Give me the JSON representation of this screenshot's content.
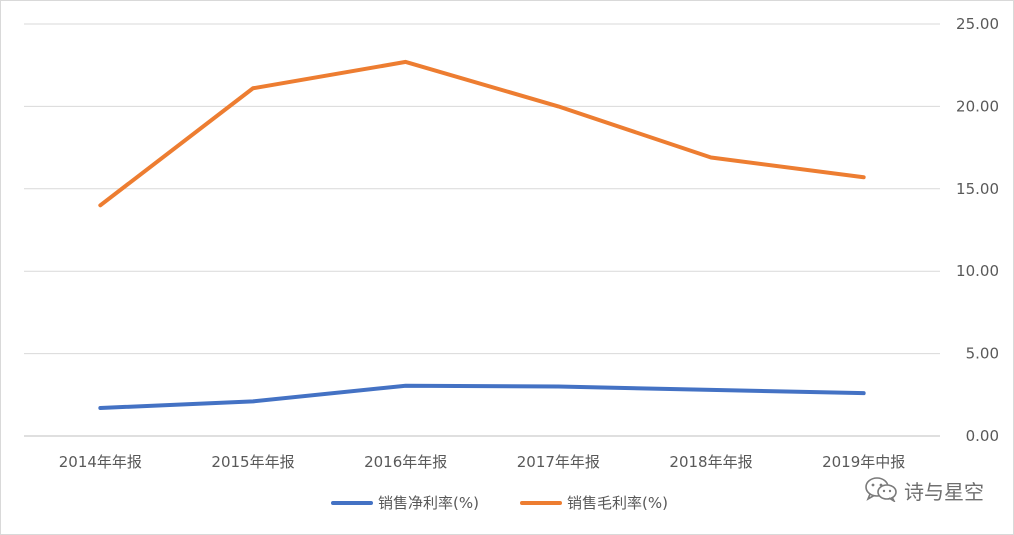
{
  "chart_data": {
    "type": "line",
    "categories": [
      "2014年年报",
      "2015年年报",
      "2016年年报",
      "2017年年报",
      "2018年年报",
      "2019年中报"
    ],
    "series": [
      {
        "name": "销售净利率(%)",
        "color": "#4472c4",
        "values": [
          1.7,
          2.1,
          3.05,
          3.0,
          2.8,
          2.6
        ]
      },
      {
        "name": "销售毛利率(%)",
        "color": "#ed7d31",
        "values": [
          14.0,
          21.1,
          22.7,
          20.0,
          16.9,
          15.7
        ]
      }
    ],
    "y_axis": {
      "position": "right",
      "ylim": [
        0,
        25
      ],
      "ticks": [
        "0.00",
        "5.00",
        "10.00",
        "15.00",
        "20.00",
        "25.00"
      ]
    },
    "grid": true,
    "legend_position": "bottom"
  },
  "watermark": {
    "text": "诗与星空",
    "icon": "wechat-icon"
  }
}
